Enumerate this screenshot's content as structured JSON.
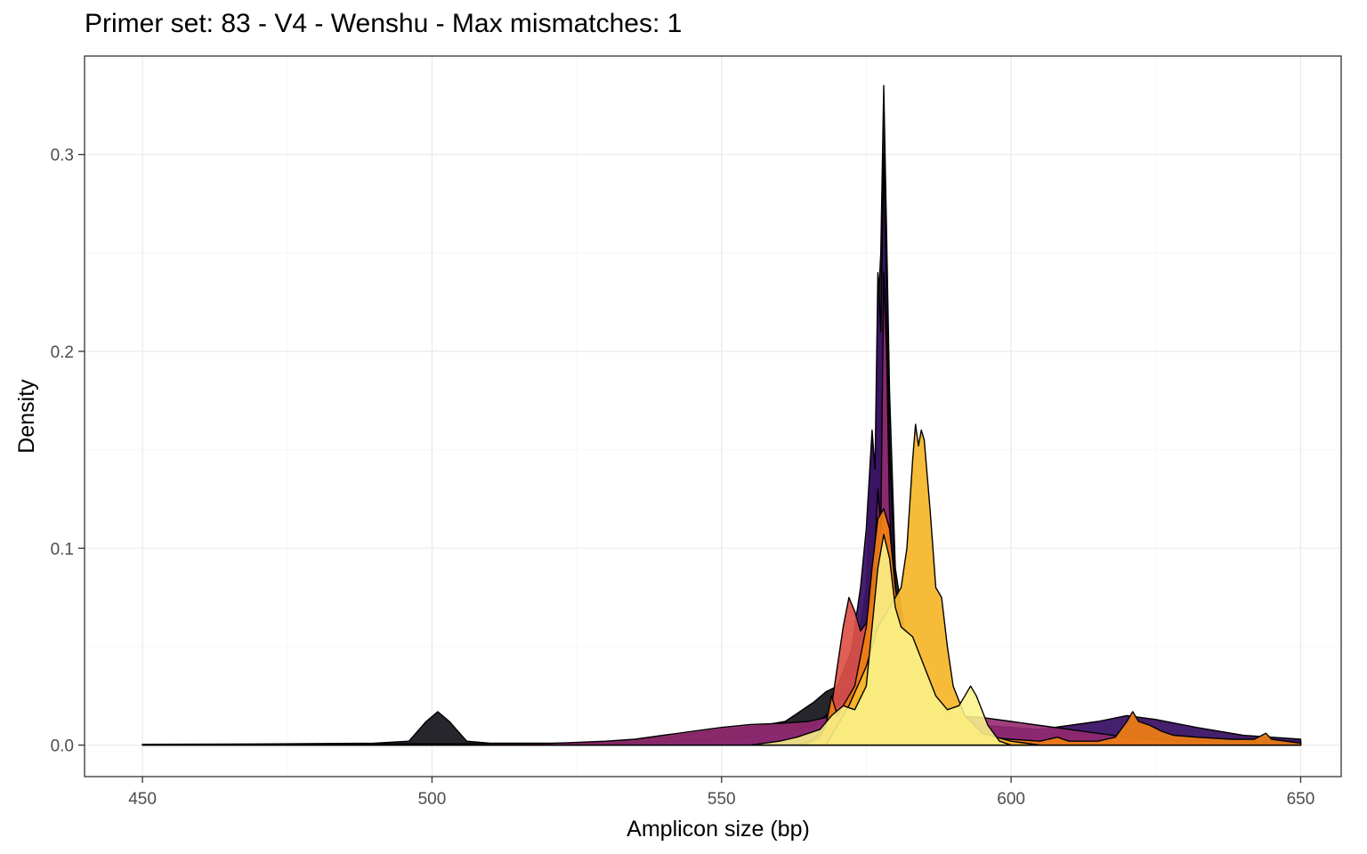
{
  "chart_data": {
    "type": "area",
    "title": "Primer set: 83 - V4 - Wenshu - Max mismatches: 1",
    "xlabel": "Amplicon size (bp)",
    "ylabel": "Density",
    "xlim": [
      440,
      657
    ],
    "ylim": [
      -0.016,
      0.35
    ],
    "x_ticks": [
      450,
      500,
      550,
      600,
      650
    ],
    "y_ticks": [
      0.0,
      0.1,
      0.2,
      0.3
    ],
    "x_tick_labels": [
      "450",
      "500",
      "550",
      "600",
      "650"
    ],
    "y_tick_labels": [
      "0.0",
      "0.1",
      "0.2",
      "0.3"
    ],
    "grid": true,
    "legend": "none",
    "series": [
      {
        "color": "#1b1a21",
        "opacity": 0.95,
        "points": [
          [
            450,
            0.0004
          ],
          [
            470,
            0.0006
          ],
          [
            490,
            0.001
          ],
          [
            496,
            0.002
          ],
          [
            499,
            0.012
          ],
          [
            501,
            0.017
          ],
          [
            503,
            0.012
          ],
          [
            506,
            0.002
          ],
          [
            510,
            0.001
          ],
          [
            525,
            0.001
          ],
          [
            532,
            0.002
          ],
          [
            540,
            0.004
          ],
          [
            550,
            0.008
          ],
          [
            557,
            0.01
          ],
          [
            561,
            0.012
          ],
          [
            563,
            0.016
          ],
          [
            566,
            0.022
          ],
          [
            568,
            0.027
          ],
          [
            570,
            0.03
          ],
          [
            572,
            0.045
          ],
          [
            574,
            0.06
          ],
          [
            575,
            0.08
          ],
          [
            576,
            0.158
          ],
          [
            576.5,
            0.12
          ],
          [
            577,
            0.22
          ],
          [
            577.5,
            0.25
          ],
          [
            578,
            0.335
          ],
          [
            578.5,
            0.26
          ],
          [
            579,
            0.18
          ],
          [
            580,
            0.09
          ],
          [
            582,
            0.05
          ],
          [
            585,
            0.035
          ],
          [
            588,
            0.02
          ],
          [
            592,
            0.012
          ],
          [
            600,
            0.007
          ],
          [
            620,
            0.004
          ],
          [
            640,
            0.003
          ],
          [
            650,
            0.002
          ]
        ]
      },
      {
        "color": "#3b1466",
        "opacity": 0.95,
        "points": [
          [
            450,
            0.0002
          ],
          [
            530,
            0.0005
          ],
          [
            550,
            0.003
          ],
          [
            560,
            0.006
          ],
          [
            566,
            0.01
          ],
          [
            570,
            0.02
          ],
          [
            572,
            0.04
          ],
          [
            574,
            0.08
          ],
          [
            575,
            0.11
          ],
          [
            576,
            0.16
          ],
          [
            576.5,
            0.14
          ],
          [
            577,
            0.24
          ],
          [
            577.5,
            0.21
          ],
          [
            578,
            0.3
          ],
          [
            578.5,
            0.23
          ],
          [
            579,
            0.15
          ],
          [
            580,
            0.08
          ],
          [
            582,
            0.04
          ],
          [
            586,
            0.02
          ],
          [
            595,
            0.01
          ],
          [
            605,
            0.008
          ],
          [
            615,
            0.012
          ],
          [
            620,
            0.015
          ],
          [
            625,
            0.013
          ],
          [
            632,
            0.009
          ],
          [
            640,
            0.005
          ],
          [
            650,
            0.003
          ]
        ]
      },
      {
        "color": "#952a70",
        "opacity": 0.9,
        "points": [
          [
            450,
            0.0003
          ],
          [
            520,
            0.0008
          ],
          [
            530,
            0.002
          ],
          [
            535,
            0.003
          ],
          [
            540,
            0.005
          ],
          [
            545,
            0.007
          ],
          [
            550,
            0.009
          ],
          [
            555,
            0.0105
          ],
          [
            560,
            0.011
          ],
          [
            565,
            0.012
          ],
          [
            568,
            0.014
          ],
          [
            570,
            0.02
          ],
          [
            573,
            0.03
          ],
          [
            575,
            0.045
          ],
          [
            576,
            0.07
          ],
          [
            577,
            0.13
          ],
          [
            577.5,
            0.11
          ],
          [
            578,
            0.24
          ],
          [
            578.5,
            0.2
          ],
          [
            579,
            0.12
          ],
          [
            580,
            0.06
          ],
          [
            582,
            0.035
          ],
          [
            586,
            0.02
          ],
          [
            590,
            0.015
          ],
          [
            595,
            0.014
          ],
          [
            600,
            0.012
          ],
          [
            605,
            0.01
          ],
          [
            610,
            0.008
          ],
          [
            615,
            0.006
          ],
          [
            620,
            0.004
          ],
          [
            630,
            0.002
          ],
          [
            650,
            0.001
          ]
        ]
      },
      {
        "color": "#dd5149",
        "opacity": 0.92,
        "points": [
          [
            563,
            0.0
          ],
          [
            566,
            0.003
          ],
          [
            568,
            0.01
          ],
          [
            569,
            0.02
          ],
          [
            570,
            0.04
          ],
          [
            571,
            0.06
          ],
          [
            572,
            0.075
          ],
          [
            573,
            0.068
          ],
          [
            574,
            0.058
          ],
          [
            575,
            0.062
          ],
          [
            576,
            0.075
          ],
          [
            577,
            0.1
          ],
          [
            578,
            0.12
          ],
          [
            579,
            0.11
          ],
          [
            580,
            0.08
          ],
          [
            581,
            0.06
          ],
          [
            582,
            0.05
          ],
          [
            584,
            0.04
          ],
          [
            586,
            0.03
          ],
          [
            588,
            0.02
          ],
          [
            590,
            0.01
          ],
          [
            593,
            0.003
          ],
          [
            596,
            0.0
          ]
        ]
      },
      {
        "color": "#f07f14",
        "opacity": 0.92,
        "points": [
          [
            564,
            0.0
          ],
          [
            567,
            0.004
          ],
          [
            568,
            0.01
          ],
          [
            569,
            0.025
          ],
          [
            570,
            0.015
          ],
          [
            571,
            0.02
          ],
          [
            573,
            0.03
          ],
          [
            575,
            0.06
          ],
          [
            576,
            0.09
          ],
          [
            577,
            0.115
          ],
          [
            578,
            0.12
          ],
          [
            579,
            0.11
          ],
          [
            580,
            0.08
          ],
          [
            581,
            0.06
          ],
          [
            583,
            0.045
          ],
          [
            585,
            0.035
          ],
          [
            587,
            0.025
          ],
          [
            589,
            0.015
          ],
          [
            592,
            0.008
          ],
          [
            596,
            0.004
          ],
          [
            600,
            0.003
          ],
          [
            605,
            0.002
          ],
          [
            608,
            0.004
          ],
          [
            610,
            0.002
          ],
          [
            615,
            0.002
          ],
          [
            618,
            0.004
          ],
          [
            620,
            0.012
          ],
          [
            621,
            0.017
          ],
          [
            622,
            0.012
          ],
          [
            624,
            0.01
          ],
          [
            626,
            0.007
          ],
          [
            628,
            0.005
          ],
          [
            632,
            0.004
          ],
          [
            638,
            0.003
          ],
          [
            642,
            0.003
          ],
          [
            644,
            0.006
          ],
          [
            645,
            0.003
          ],
          [
            650,
            0.001
          ]
        ]
      },
      {
        "color": "#f6b72d",
        "opacity": 0.95,
        "points": [
          [
            568,
            0.0
          ],
          [
            572,
            0.02
          ],
          [
            575,
            0.04
          ],
          [
            577,
            0.06
          ],
          [
            579,
            0.07
          ],
          [
            581,
            0.08
          ],
          [
            582,
            0.1
          ],
          [
            583,
            0.145
          ],
          [
            583.5,
            0.163
          ],
          [
            584,
            0.152
          ],
          [
            584.5,
            0.16
          ],
          [
            585,
            0.155
          ],
          [
            586,
            0.12
          ],
          [
            587,
            0.08
          ],
          [
            588,
            0.075
          ],
          [
            589,
            0.05
          ],
          [
            590,
            0.03
          ],
          [
            592,
            0.015
          ],
          [
            595,
            0.006
          ],
          [
            600,
            0.002
          ],
          [
            605,
            0.0
          ]
        ]
      },
      {
        "color": "#fbf28a",
        "opacity": 0.88,
        "points": [
          [
            555,
            0.0
          ],
          [
            560,
            0.002
          ],
          [
            563,
            0.004
          ],
          [
            567,
            0.008
          ],
          [
            569,
            0.015
          ],
          [
            571,
            0.02
          ],
          [
            573,
            0.018
          ],
          [
            575,
            0.03
          ],
          [
            576,
            0.06
          ],
          [
            577,
            0.09
          ],
          [
            578,
            0.107
          ],
          [
            579,
            0.095
          ],
          [
            580,
            0.07
          ],
          [
            581,
            0.06
          ],
          [
            583,
            0.055
          ],
          [
            585,
            0.04
          ],
          [
            587,
            0.025
          ],
          [
            589,
            0.018
          ],
          [
            591,
            0.02
          ],
          [
            592,
            0.025
          ],
          [
            593,
            0.03
          ],
          [
            594,
            0.025
          ],
          [
            596,
            0.01
          ],
          [
            598,
            0.002
          ],
          [
            600,
            0.0
          ]
        ]
      }
    ]
  }
}
